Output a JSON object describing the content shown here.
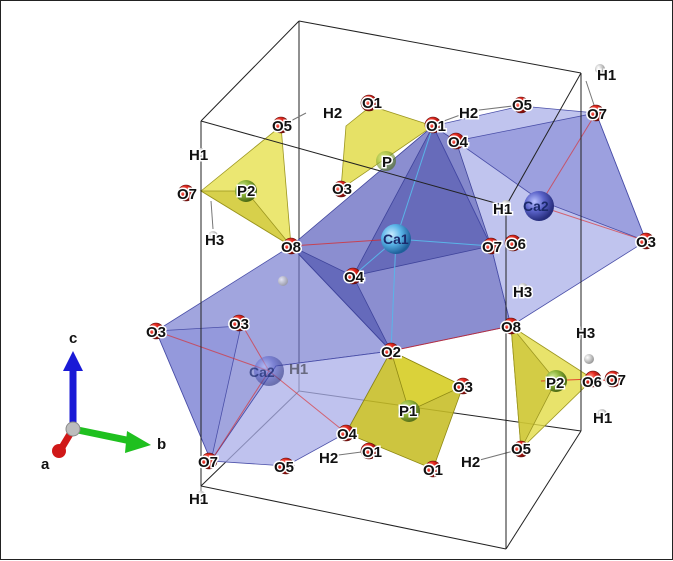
{
  "structure": {
    "cell_edges_color": "#111111",
    "polyhedra": {
      "Ca_color": "#7f86d8",
      "P_color": "#d8d23a"
    },
    "atom_colors": {
      "O": "#e0221e",
      "Ca": "#5ab4e8",
      "P": "#8db43a",
      "H": "#f2f2f2"
    }
  },
  "labels": {
    "H1_top_right": "H1",
    "H2_top_left": "H2",
    "O1_top_left": "O1",
    "O1_top_mid": "O1",
    "H2_top_mid": "H2",
    "O5_top_right": "O5",
    "O7_top_right": "O7",
    "O5_top_left": "O5",
    "O4_top": "O4",
    "H1_left": "H1",
    "P_top": "P",
    "O7_left": "O7",
    "O3_top": "O3",
    "P2_left": "P2",
    "H1_mid": "H1",
    "Ca2_right": "Ca2",
    "H3_left": "H3",
    "O8_left": "O8",
    "Ca1": "Ca1",
    "O7_mid": "O7",
    "O6_mid": "O6",
    "O3_right": "O3",
    "O4_mid": "O4",
    "H3_mid": "H3",
    "H3_right": "H3",
    "O3_far_left": "O3",
    "O3_left": "O3",
    "O8_right": "O8",
    "O2": "O2",
    "Ca2_left": "Ca2",
    "O3_center": "O3",
    "P1": "P1",
    "P2_right": "P2",
    "O6_right": "O6",
    "O7_right": "O7",
    "H1_right_low": "H1",
    "O4_low": "O4",
    "O1_low": "O1",
    "H2_low": "H2",
    "O7_bottom_left": "O7",
    "O5_bottom": "O5",
    "O1_bottom": "O1",
    "H2_bottom": "H2",
    "O5_bottom_right": "O5",
    "H1_bottom_left": "H1",
    "H1_faint": "H1"
  },
  "axes": {
    "c_label": "c",
    "b_label": "b",
    "a_label": "a",
    "c_color": "#1a1ad6",
    "b_color": "#1fc01f",
    "a_color": "#d01818"
  }
}
